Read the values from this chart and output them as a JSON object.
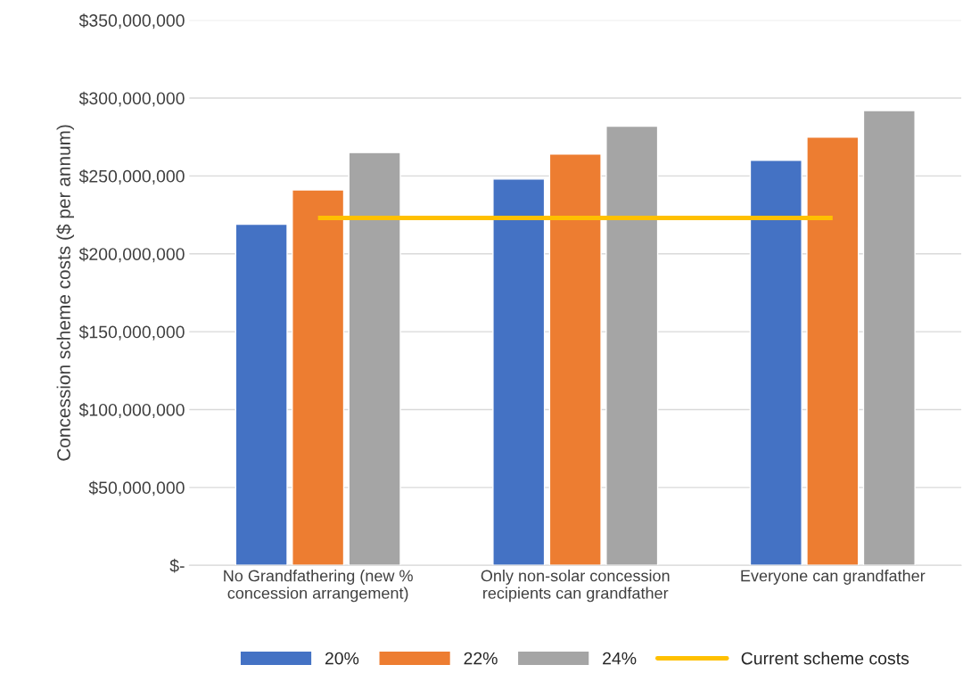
{
  "chart_data": {
    "type": "bar",
    "ylabel": "Concession scheme costs ($ per annum)",
    "categories": [
      "No Grandfathering (new % concession arrangement)",
      "Only non-solar concession recipients can grandfather",
      "Everyone can grandfather"
    ],
    "series": [
      {
        "name": "20%",
        "color": "#4472c4",
        "values": [
          219000000,
          248000000,
          260000000
        ]
      },
      {
        "name": "22%",
        "color": "#ed7d31",
        "values": [
          241000000,
          264000000,
          275000000
        ]
      },
      {
        "name": "24%",
        "color": "#a5a5a5",
        "values": [
          265000000,
          282000000,
          292000000
        ]
      },
      {
        "name": "Current scheme costs",
        "type": "line",
        "color": "#ffc000",
        "values": [
          223000000,
          223000000,
          223000000
        ]
      }
    ],
    "ylim": [
      0,
      350000000
    ],
    "yticks": [
      {
        "value": 0,
        "label": "$-"
      },
      {
        "value": 50000000,
        "label": "$50,000,000"
      },
      {
        "value": 100000000,
        "label": "$100,000,000"
      },
      {
        "value": 150000000,
        "label": "$150,000,000"
      },
      {
        "value": 200000000,
        "label": "$200,000,000"
      },
      {
        "value": 250000000,
        "label": "$250,000,000"
      },
      {
        "value": 300000000,
        "label": "$300,000,000"
      },
      {
        "value": 350000000,
        "label": "$350,000,000"
      }
    ],
    "grid": "y",
    "legend": "bottom"
  }
}
